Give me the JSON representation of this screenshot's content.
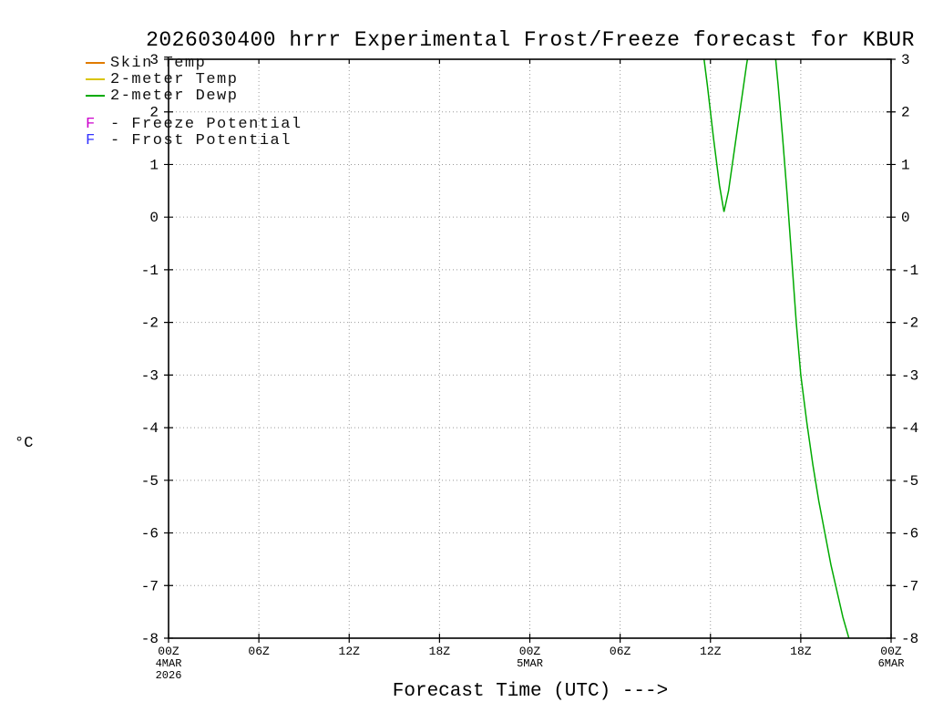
{
  "chart_data": {
    "type": "line",
    "title": "2026030400 hrrr Experimental Frost/Freeze forecast for KBUR",
    "xlabel": "Forecast Time (UTC) --->",
    "ylabel": "°C",
    "xlim": [
      0,
      48
    ],
    "ylim": [
      -8,
      3
    ],
    "grid": true,
    "y_ticks": [
      3,
      2,
      1,
      0,
      -1,
      -2,
      -3,
      -4,
      -5,
      -6,
      -7,
      -8
    ],
    "x_ticks": [
      {
        "hour": 0,
        "label": "00Z",
        "sub": [
          "4MAR",
          "2026"
        ]
      },
      {
        "hour": 6,
        "label": "06Z",
        "sub": []
      },
      {
        "hour": 12,
        "label": "12Z",
        "sub": []
      },
      {
        "hour": 18,
        "label": "18Z",
        "sub": []
      },
      {
        "hour": 24,
        "label": "00Z",
        "sub": [
          "5MAR"
        ]
      },
      {
        "hour": 30,
        "label": "06Z",
        "sub": []
      },
      {
        "hour": 36,
        "label": "12Z",
        "sub": []
      },
      {
        "hour": 42,
        "label": "18Z",
        "sub": []
      },
      {
        "hour": 48,
        "label": "00Z",
        "sub": [
          "6MAR"
        ]
      }
    ],
    "legend": {
      "position": "top-left",
      "items": [
        {
          "type": "line",
          "color": "#e07b00",
          "label": "Skin Temp"
        },
        {
          "type": "line",
          "color": "#d9c400",
          "label": "2-meter Temp"
        },
        {
          "type": "line",
          "color": "#00aa00",
          "label": "2-meter Dewp"
        },
        {
          "type": "letter",
          "color": "#cc00cc",
          "symbol": "F",
          "label": "- Freeze Potential"
        },
        {
          "type": "letter",
          "color": "#3333ff",
          "symbol": "F",
          "label": "- Frost Potential"
        }
      ]
    },
    "series": [
      {
        "name": "Skin Temp",
        "color": "#e07b00",
        "points": []
      },
      {
        "name": "2-meter Temp",
        "color": "#d9c400",
        "points": []
      },
      {
        "name": "2-meter Dewp",
        "color": "#00aa00",
        "points": [
          [
            35.4,
            3.4
          ],
          [
            35.8,
            2.5
          ],
          [
            36.2,
            1.5
          ],
          [
            36.6,
            0.6
          ],
          [
            36.9,
            0.1
          ],
          [
            37.2,
            0.5
          ],
          [
            37.6,
            1.3
          ],
          [
            38.0,
            2.1
          ],
          [
            38.4,
            2.9
          ],
          [
            38.8,
            3.6
          ],
          [
            39.2,
            4.2
          ],
          [
            39.8,
            4.2
          ],
          [
            40.2,
            3.4
          ],
          [
            40.5,
            2.5
          ],
          [
            40.8,
            1.5
          ],
          [
            41.1,
            0.4
          ],
          [
            41.4,
            -0.8
          ],
          [
            41.7,
            -2.0
          ],
          [
            42.0,
            -3.0
          ],
          [
            42.4,
            -3.9
          ],
          [
            42.8,
            -4.7
          ],
          [
            43.2,
            -5.4
          ],
          [
            43.6,
            -6.0
          ],
          [
            44.0,
            -6.6
          ],
          [
            44.4,
            -7.1
          ],
          [
            44.8,
            -7.6
          ],
          [
            45.2,
            -8.0
          ]
        ]
      }
    ]
  }
}
